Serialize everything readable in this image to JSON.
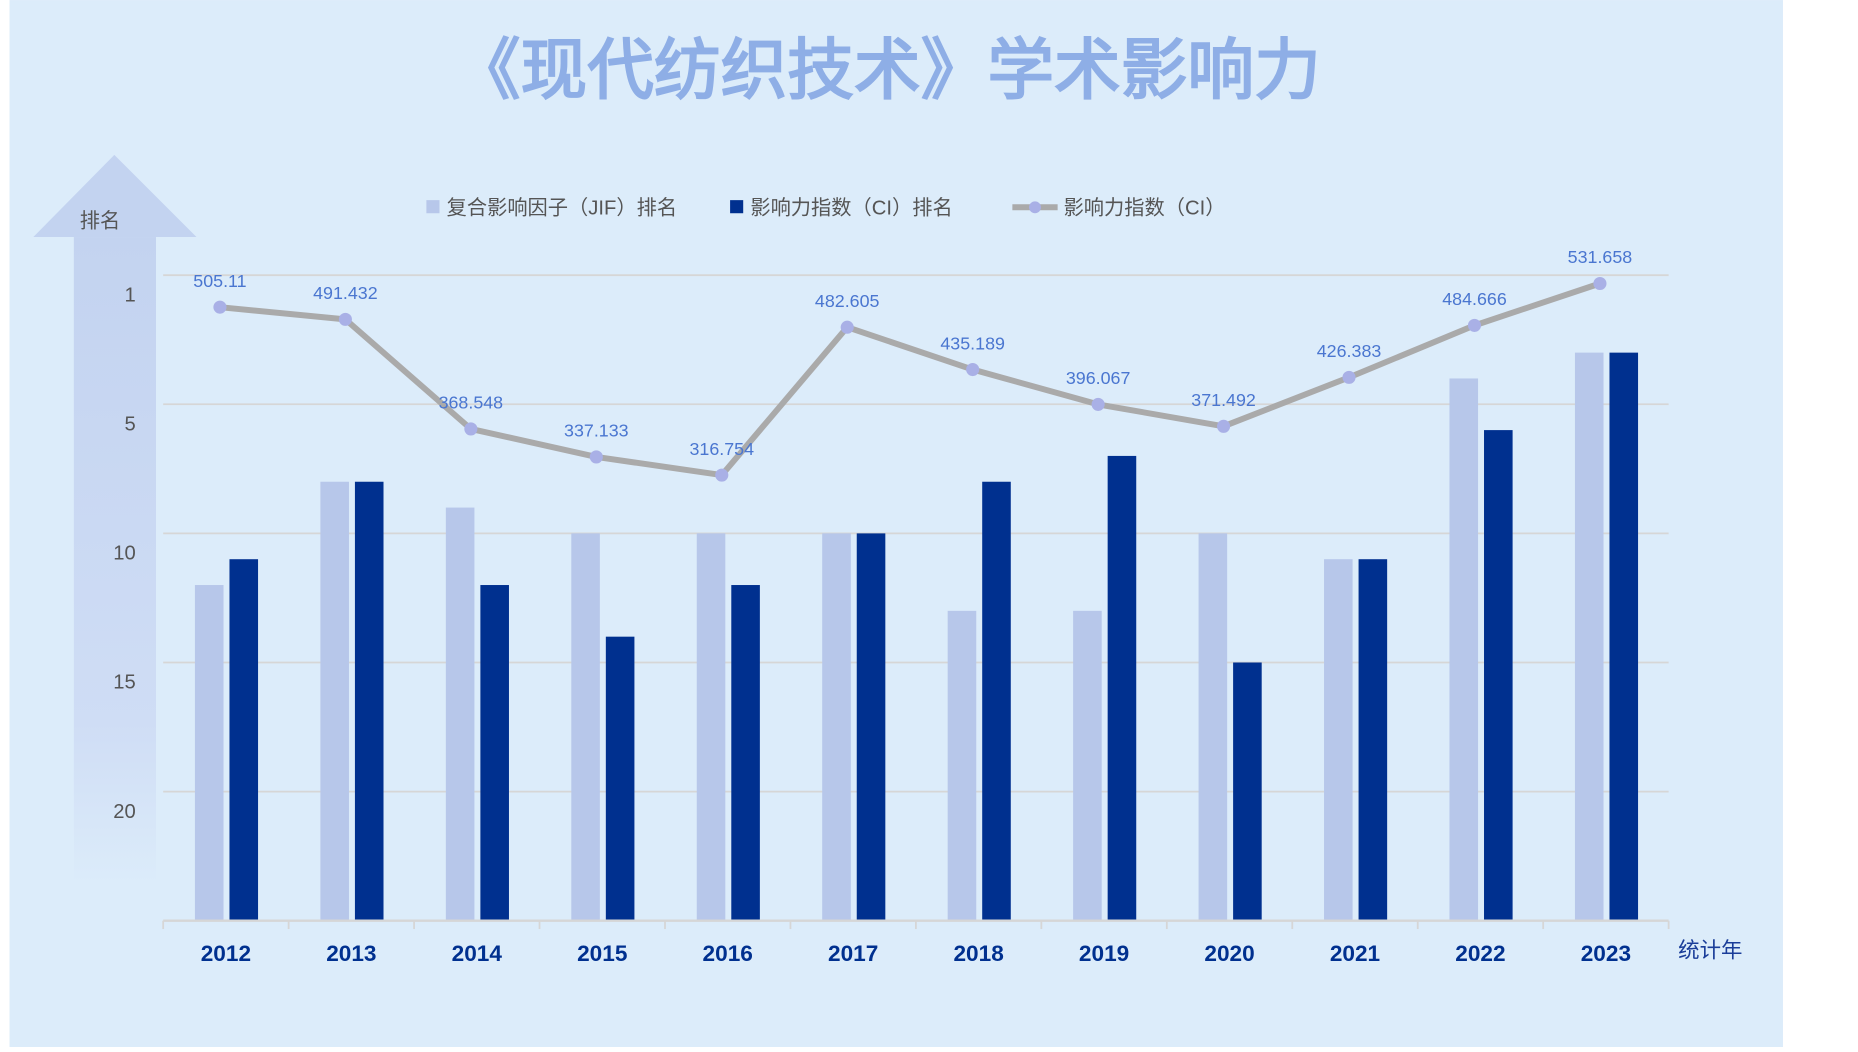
{
  "chart_data": {
    "type": "bar",
    "title": "《现代纺织技术》学术影响力",
    "ylabel": "排名",
    "xlabel": "统计年",
    "categories": [
      "2012",
      "2013",
      "2014",
      "2015",
      "2016",
      "2017",
      "2018",
      "2019",
      "2020",
      "2021",
      "2022",
      "2023"
    ],
    "rank_axis": {
      "reversed": true,
      "ylim": [
        0,
        25
      ],
      "tick_values": [
        0,
        5,
        10,
        15,
        20
      ],
      "tick_labels": [
        "1",
        "5",
        "10",
        "15",
        "20"
      ],
      "grid": true
    },
    "series": [
      {
        "name": "复合影响因子（JIF）排名",
        "type": "bar",
        "color": "#b7c7ea",
        "values": [
          12,
          8,
          9,
          10,
          10,
          10,
          13,
          13,
          10,
          11,
          4,
          3
        ]
      },
      {
        "name": "影响力指数（CI）排名",
        "type": "bar",
        "color": "#00308f",
        "values": [
          11,
          8,
          12,
          14,
          12,
          10,
          8,
          7,
          15,
          11,
          6,
          3
        ]
      },
      {
        "name": "影响力指数（CI）",
        "type": "line",
        "color": "#aaaaaa",
        "marker_color": "#a9b0e6",
        "label_color": "#4a76d0",
        "axis": "secondary",
        "ylim": [
          -183,
          541
        ],
        "values": [
          505.11,
          491.432,
          368.548,
          337.133,
          316.754,
          482.605,
          435.189,
          396.067,
          371.492,
          426.383,
          484.666,
          531.658
        ],
        "labels": [
          "505.11",
          "491.432",
          "368.548",
          "337.133",
          "316.754",
          "482.605",
          "435.189",
          "396.067",
          "371.492",
          "426.383",
          "484.666",
          "531.658"
        ]
      }
    ],
    "legend": "top"
  }
}
